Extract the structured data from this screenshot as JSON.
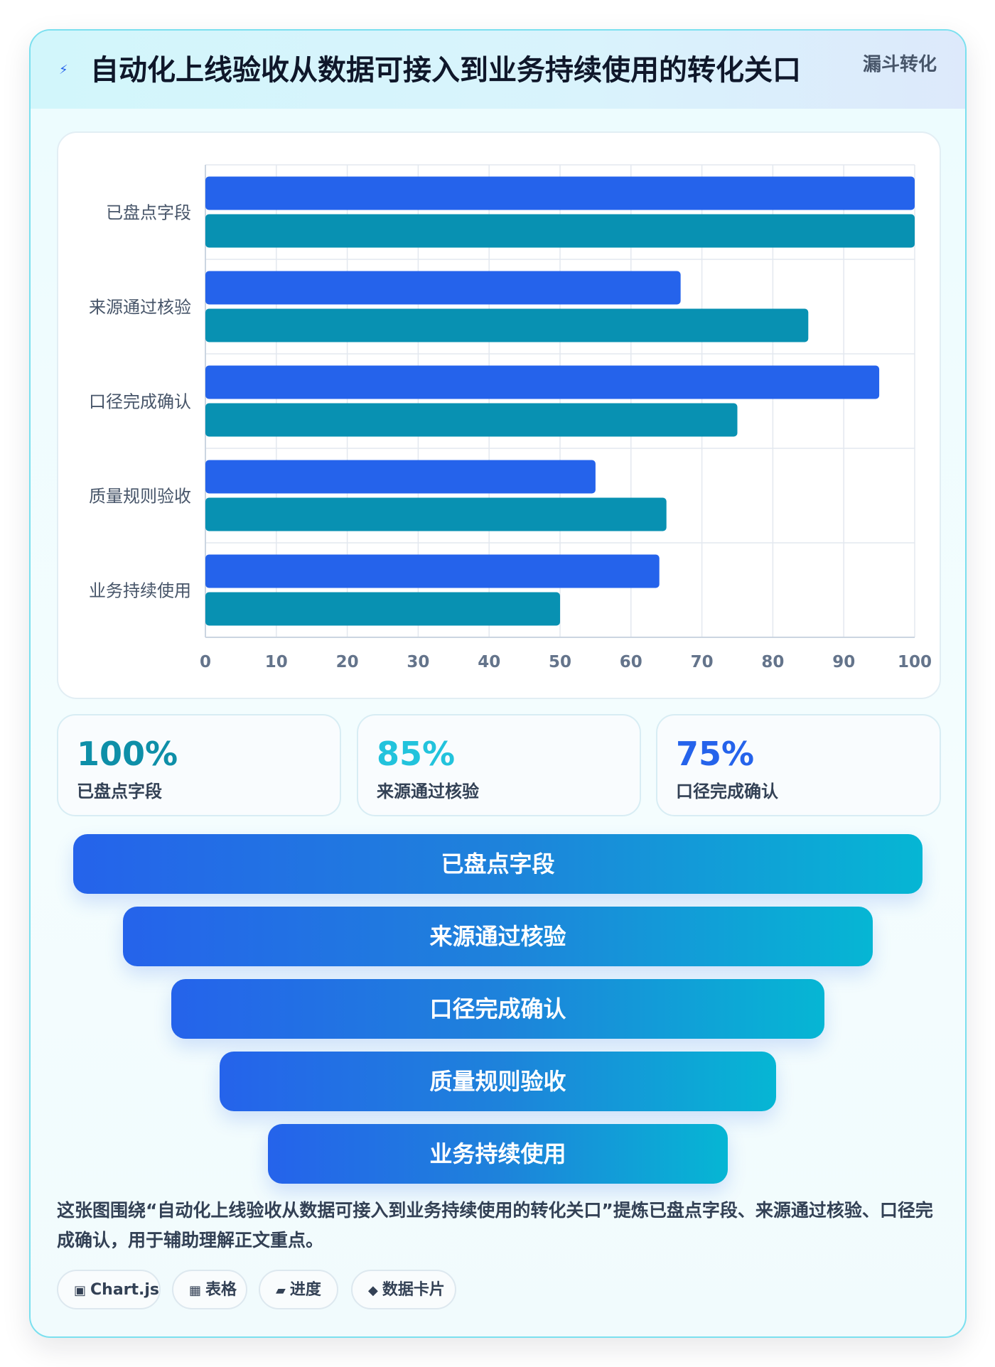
{
  "header": {
    "icon": "lightning-icon",
    "title": "自动化上线验收从数据可接入到业务持续使用的转化关口",
    "badge": "漏斗转化"
  },
  "chart_data": {
    "type": "bar",
    "orientation": "horizontal",
    "categories": [
      "已盘点字段",
      "来源通过核验",
      "口径完成确认",
      "质量规则验收",
      "业务持续使用"
    ],
    "series": [
      {
        "values": [
          100,
          67,
          95,
          55,
          64
        ],
        "color": "#2563eb"
      },
      {
        "values": [
          100,
          85,
          75,
          65,
          50
        ],
        "color": "#0891b2"
      }
    ],
    "xlim": [
      0,
      100
    ],
    "xticks": [
      "0",
      "10",
      "20",
      "30",
      "40",
      "50",
      "60",
      "70",
      "80",
      "90",
      "100"
    ],
    "grid": true
  },
  "kpis": [
    {
      "value": "100%",
      "label": "已盘点字段",
      "color": "#0e8fa8"
    },
    {
      "value": "85%",
      "label": "来源通过核验",
      "color": "#22c3dc"
    },
    {
      "value": "75%",
      "label": "口径完成确认",
      "color": "#2563eb"
    }
  ],
  "funnel": [
    "已盘点字段",
    "来源通过核验",
    "口径完成确认",
    "质量规则验收",
    "业务持续使用"
  ],
  "description": "这张图围绕“自动化上线验收从数据可接入到业务持续使用的转化关口”提炼已盘点字段、来源通过核验、口径完成确认，用于辅助理解正文重点。",
  "chips": [
    {
      "icon": "▣",
      "label": "Chart.js"
    },
    {
      "icon": "▦",
      "label": "表格"
    },
    {
      "icon": "▰",
      "label": "进度"
    },
    {
      "icon": "◆",
      "label": "数据卡片"
    }
  ]
}
